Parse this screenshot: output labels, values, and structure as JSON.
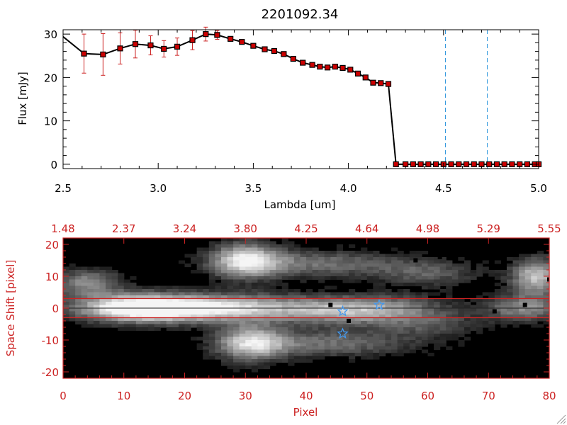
{
  "chart_data": [
    {
      "type": "line",
      "title": "2201092.34",
      "xlabel": "Lambda [um]",
      "ylabel": "Flux [mJy]",
      "xlim": [
        2.5,
        5.0
      ],
      "ylim": [
        -1,
        31
      ],
      "xticks": [
        "2.5",
        "3.0",
        "3.5",
        "4.0",
        "4.5",
        "5.0"
      ],
      "yticks": [
        "0",
        "10",
        "20",
        "30"
      ],
      "series": [
        {
          "name": "flux",
          "x": [
            2.5,
            2.61,
            2.71,
            2.8,
            2.88,
            2.96,
            3.03,
            3.1,
            3.18,
            3.25,
            3.31,
            3.38,
            3.44,
            3.5,
            3.56,
            3.61,
            3.66,
            3.71,
            3.76,
            3.81,
            3.85,
            3.89,
            3.93,
            3.97,
            4.01,
            4.05,
            4.09,
            4.13,
            4.17,
            4.21,
            4.25,
            4.3,
            4.34,
            4.38,
            4.42,
            4.46,
            4.5,
            4.54,
            4.58,
            4.62,
            4.66,
            4.7,
            4.74,
            4.78,
            4.82,
            4.86,
            4.9,
            4.94,
            4.98,
            5.0
          ],
          "y": [
            29.4,
            25.5,
            25.3,
            26.7,
            27.7,
            27.4,
            26.6,
            27.1,
            28.6,
            30.0,
            29.8,
            28.9,
            28.2,
            27.3,
            26.5,
            26.1,
            25.4,
            24.3,
            23.4,
            22.9,
            22.5,
            22.3,
            22.5,
            22.2,
            21.8,
            20.9,
            20.0,
            18.8,
            18.7,
            18.5,
            0,
            0,
            0,
            0,
            0,
            0,
            0,
            0,
            0,
            0,
            0,
            0,
            0,
            0,
            0,
            0,
            0,
            0,
            0,
            0
          ],
          "yerr": [
            0,
            4.5,
            4.8,
            3.6,
            3.2,
            2.2,
            1.9,
            2.0,
            2.2,
            1.6,
            1.0,
            0.5,
            0.5,
            0.3,
            0.3,
            0.3,
            0.3,
            0.3,
            0.3,
            0.3,
            0.3,
            0.3,
            0.3,
            0.3,
            0.3,
            0.3,
            0.3,
            0.3,
            0.3,
            0.3,
            0,
            0,
            0,
            0,
            0,
            0,
            0,
            0,
            0,
            0,
            0,
            0,
            0,
            0,
            0,
            0,
            0,
            0,
            0,
            0
          ]
        }
      ],
      "vlines": [
        4.51,
        4.73
      ],
      "colors": {
        "line": "#000000",
        "marker": "#cc0000",
        "errorbar": "#cc2222",
        "vline": "#3399dd",
        "axis": "#000000"
      }
    },
    {
      "type": "heatmap",
      "xlabel": "Pixel",
      "ylabel": "Space Shift [pixel]",
      "xlim": [
        0,
        80
      ],
      "ylim": [
        -22,
        22
      ],
      "xticks": [
        "0",
        "10",
        "20",
        "30",
        "40",
        "50",
        "60",
        "70",
        "80"
      ],
      "yticks": [
        "-20",
        "-10",
        "0",
        "10",
        "20"
      ],
      "top_ticks": [
        "1.48",
        "2.37",
        "3.24",
        "3.80",
        "4.25",
        "4.64",
        "4.98",
        "5.29",
        "5.55"
      ],
      "extraction_band": [
        -3,
        3
      ],
      "blobs": [
        {
          "x": 12,
          "y": 0,
          "sx": 7,
          "sy": 3,
          "v": 1.0
        },
        {
          "x": 22,
          "y": 0,
          "sx": 10,
          "sy": 3,
          "v": 0.6
        },
        {
          "x": 33,
          "y": 0,
          "sx": 10,
          "sy": 3,
          "v": 0.45
        },
        {
          "x": 46,
          "y": -1,
          "sx": 6,
          "sy": 3,
          "v": 0.5
        },
        {
          "x": 55,
          "y": 0,
          "sx": 6,
          "sy": 3,
          "v": 0.4
        },
        {
          "x": 76,
          "y": 0,
          "sx": 5,
          "sy": 3,
          "v": 0.55
        },
        {
          "x": 30,
          "y": 15,
          "sx": 4,
          "sy": 4,
          "v": 0.85
        },
        {
          "x": 42,
          "y": 14,
          "sx": 10,
          "sy": 3,
          "v": 0.45
        },
        {
          "x": 60,
          "y": 11,
          "sx": 6,
          "sy": 3,
          "v": 0.35
        },
        {
          "x": 78,
          "y": 10,
          "sx": 3,
          "sy": 4,
          "v": 0.8
        },
        {
          "x": 4,
          "y": 8,
          "sx": 4,
          "sy": 3,
          "v": 0.55
        },
        {
          "x": 31,
          "y": -11,
          "sx": 4,
          "sy": 4,
          "v": 0.8
        },
        {
          "x": 44,
          "y": -11,
          "sx": 10,
          "sy": 3,
          "v": 0.45
        },
        {
          "x": 60,
          "y": -5,
          "sx": 6,
          "sy": 3,
          "v": 0.3
        }
      ],
      "dark_points": [
        [
          44,
          1
        ],
        [
          47,
          -4
        ],
        [
          58,
          15
        ],
        [
          62,
          16
        ],
        [
          71,
          -1
        ],
        [
          76,
          1
        ],
        [
          80,
          9
        ]
      ],
      "stars": [
        [
          46,
          -1
        ],
        [
          52,
          1
        ],
        [
          46,
          -8
        ]
      ],
      "colors": {
        "axis": "#cc2222",
        "band": "#cc2222",
        "star": "#4499ee",
        "center_line": "#222222"
      }
    }
  ]
}
